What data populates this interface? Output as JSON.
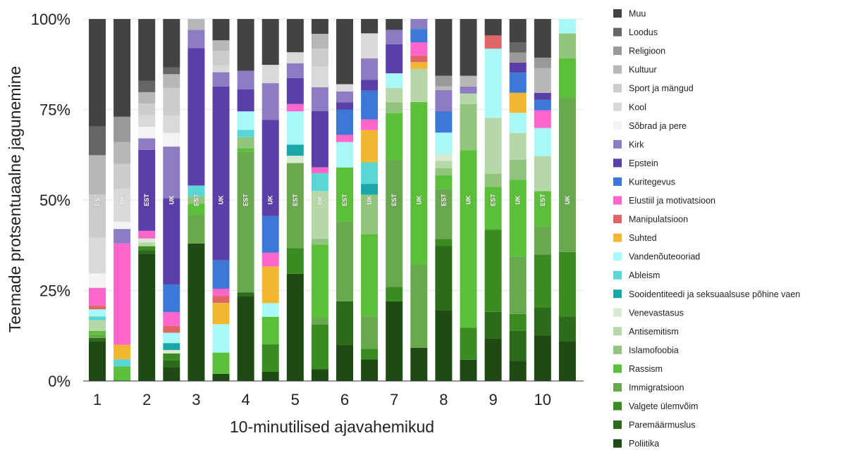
{
  "chart_data": {
    "type": "bar",
    "stacked": true,
    "normalized": true,
    "ylabel": "Teemade protsentuaalne jagunemine",
    "xlabel": "10-minutilised ajavahemikud",
    "yticks": [
      "0%",
      "25%",
      "50%",
      "75%",
      "100%"
    ],
    "ylim": [
      0,
      100
    ],
    "legend_position": "right",
    "groups": [
      "1",
      "2",
      "3",
      "4",
      "5",
      "6",
      "7",
      "8",
      "9",
      "10"
    ],
    "bar_labels": [
      "EST",
      "UK"
    ],
    "categories": [
      "1 EST",
      "1 UK",
      "2 EST",
      "2 UK",
      "3 EST",
      "3 UK",
      "4 EST",
      "4 UK",
      "5 EST",
      "5 UK",
      "6 EST",
      "6 UK",
      "7 EST",
      "7 UK",
      "8 EST",
      "8 UK",
      "9 EST",
      "9 UK",
      "10 EST",
      "10 UK"
    ],
    "series": [
      {
        "name": "Poliitika",
        "color": "#1f4a14",
        "values": [
          11,
          0,
          33,
          4,
          38,
          2,
          23,
          2,
          29,
          4,
          10,
          6,
          22,
          10,
          20,
          6,
          13,
          6,
          13,
          11
        ]
      },
      {
        "name": "Paremäärmuslus",
        "color": "#2d6a1c",
        "values": [
          1,
          0,
          1,
          2,
          0,
          0,
          1,
          0,
          0,
          0,
          12,
          0,
          0,
          0,
          18,
          0,
          8,
          9,
          8,
          7
        ]
      },
      {
        "name": "Valgete ülemvõim",
        "color": "#3a8c22",
        "values": [
          0,
          0,
          1,
          2,
          0,
          0,
          0,
          6,
          7,
          15,
          0,
          3,
          4,
          0,
          2,
          9,
          25,
          5,
          15,
          18
        ]
      },
      {
        "name": "Immigratsioon",
        "color": "#6aa84f",
        "values": [
          1,
          0,
          0,
          0,
          8,
          0,
          38,
          0,
          23,
          2,
          22,
          9,
          35,
          25,
          14,
          0,
          0,
          17,
          8,
          43
        ]
      },
      {
        "name": "Rassism",
        "color": "#5bbf3a",
        "values": [
          1,
          4,
          0,
          0,
          3,
          6,
          1,
          6,
          0,
          25,
          15,
          23,
          13,
          49,
          4,
          50,
          13,
          23,
          10,
          11
        ]
      },
      {
        "name": "Islamofoobia",
        "color": "#93c47d",
        "values": [
          0,
          0,
          0,
          0,
          2,
          0,
          3,
          0,
          0,
          2,
          0,
          11,
          3,
          0,
          2,
          13,
          4,
          6,
          0,
          7
        ]
      },
      {
        "name": "Antisemitism",
        "color": "#b6d7a8",
        "values": [
          3,
          0,
          1,
          0,
          0,
          0,
          0,
          0,
          0,
          16,
          0,
          0,
          4,
          10,
          2,
          3,
          17,
          8,
          10,
          0
        ]
      },
      {
        "name": "Venevastasus",
        "color": "#d9ead3",
        "values": [
          0,
          0,
          1,
          1,
          0,
          0,
          0,
          0,
          2,
          0,
          0,
          0,
          0,
          0,
          2,
          0,
          0,
          0,
          0,
          0
        ]
      },
      {
        "name": "Sooidentiteedi ja seksuaalsuse põhine vaen",
        "color": "#1aa7a7",
        "values": [
          0,
          0,
          0,
          2,
          0,
          0,
          0,
          0,
          3,
          0,
          0,
          3,
          0,
          0,
          0,
          0,
          0,
          0,
          0,
          0
        ]
      },
      {
        "name": "Ableism",
        "color": "#5ad6d6",
        "values": [
          1,
          2,
          0,
          0,
          3,
          0,
          2,
          0,
          0,
          6,
          0,
          6,
          0,
          0,
          0,
          0,
          0,
          0,
          0,
          0
        ]
      },
      {
        "name": "Vandenõuteooriad",
        "color": "#a8f8f8",
        "values": [
          2,
          0,
          0,
          3,
          0,
          8,
          5,
          3,
          9,
          0,
          7,
          0,
          4,
          0,
          6,
          0,
          21,
          6,
          8,
          4
        ]
      },
      {
        "name": "Suhted",
        "color": "#f1b731",
        "values": [
          0,
          4,
          0,
          0,
          0,
          6,
          0,
          8,
          0,
          0,
          0,
          9,
          0,
          2,
          0,
          0,
          0,
          6,
          0,
          0
        ]
      },
      {
        "name": "Manipulatsioon",
        "color": "#e06666",
        "values": [
          1,
          0,
          0,
          2,
          0,
          2,
          0,
          0,
          0,
          0,
          0,
          0,
          0,
          2,
          0,
          0,
          4,
          0,
          0,
          0
        ]
      },
      {
        "name": "Elustiil ja motivatsioon",
        "color": "#ff66cc",
        "values": [
          5,
          28,
          2,
          4,
          0,
          2,
          0,
          3,
          2,
          2,
          2,
          3,
          0,
          4,
          0,
          0,
          0,
          0,
          5,
          0
        ]
      },
      {
        "name": "Kuritegevus",
        "color": "#3c78d8",
        "values": [
          0,
          0,
          0,
          8,
          0,
          8,
          0,
          8,
          0,
          0,
          7,
          8,
          0,
          4,
          6,
          0,
          0,
          6,
          3,
          0
        ]
      },
      {
        "name": "Epstein",
        "color": "#5b3fa8",
        "values": [
          0,
          0,
          21,
          25,
          38,
          49,
          6,
          21,
          7,
          19,
          2,
          3,
          8,
          0,
          0,
          0,
          0,
          3,
          2,
          0
        ]
      },
      {
        "name": "Kirk",
        "color": "#8e7cc3",
        "values": [
          0,
          4,
          3,
          15,
          5,
          4,
          5,
          8,
          4,
          8,
          3,
          6,
          4,
          3,
          6,
          2,
          0,
          0,
          0,
          0
        ]
      },
      {
        "name": "Sõbrad ja pere",
        "color": "#f3f3f3",
        "values": [
          4,
          2,
          3,
          4,
          0,
          0,
          0,
          0,
          0,
          0,
          0,
          0,
          0,
          0,
          0,
          0,
          0,
          0,
          0,
          0
        ]
      },
      {
        "name": "Kool",
        "color": "#d9d9d9",
        "values": [
          10,
          9,
          3,
          5,
          0,
          2,
          0,
          4,
          3,
          7,
          2,
          7,
          0,
          0,
          0,
          0,
          0,
          0,
          0,
          0
        ]
      },
      {
        "name": "Sport ja mängud",
        "color": "#cccccc",
        "values": [
          12,
          7,
          3,
          8,
          0,
          4,
          0,
          0,
          0,
          6,
          0,
          0,
          0,
          0,
          0,
          0,
          0,
          0,
          0,
          0
        ]
      },
      {
        "name": "Kultuur",
        "color": "#b7b7b7",
        "values": [
          11,
          6,
          3,
          4,
          3,
          3,
          0,
          0,
          0,
          5,
          0,
          0,
          0,
          0,
          1,
          3,
          0,
          0,
          7,
          0
        ]
      },
      {
        "name": "Religioon",
        "color": "#999999",
        "values": [
          0,
          7,
          0,
          0,
          0,
          0,
          0,
          0,
          0,
          0,
          0,
          0,
          0,
          0,
          3,
          0,
          0,
          3,
          3,
          0
        ]
      },
      {
        "name": "Loodus",
        "color": "#666666",
        "values": [
          8,
          0,
          3,
          2,
          0,
          0,
          0,
          0,
          0,
          0,
          0,
          0,
          0,
          0,
          0,
          0,
          0,
          3,
          0,
          0
        ]
      },
      {
        "name": "Muu",
        "color": "#434343",
        "values": [
          30,
          27,
          16,
          14,
          0,
          6,
          14,
          10,
          9,
          5,
          18,
          4,
          3,
          0,
          16,
          16,
          5,
          7,
          11,
          0
        ]
      }
    ]
  }
}
